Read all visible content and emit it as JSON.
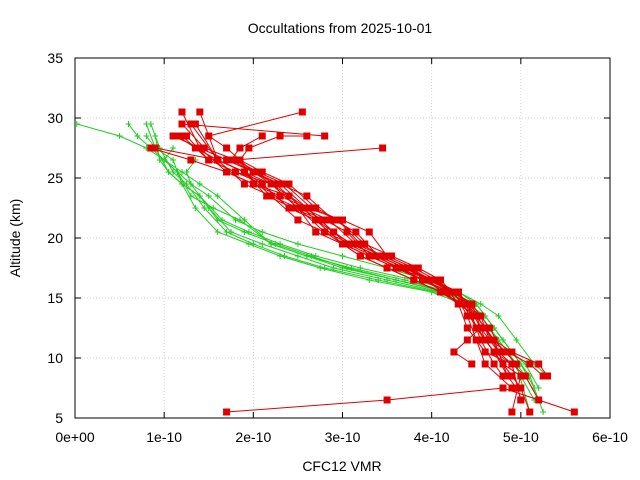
{
  "chart_data": {
    "type": "line",
    "title": "Occultations from 2025-10-01",
    "xlabel": "CFC12 VMR",
    "ylabel": "Altitude (km)",
    "xlim": [
      0,
      6e-10
    ],
    "ylim": [
      5,
      35
    ],
    "xticks": [
      {
        "value": 0,
        "label": "0e+00"
      },
      {
        "value": 1e-10,
        "label": "1e-10"
      },
      {
        "value": 2e-10,
        "label": "2e-10"
      },
      {
        "value": 3e-10,
        "label": "3e-10"
      },
      {
        "value": 4e-10,
        "label": "4e-10"
      },
      {
        "value": 5e-10,
        "label": "5e-10"
      },
      {
        "value": 6e-10,
        "label": "6e-10"
      }
    ],
    "yticks": [
      {
        "value": 5,
        "label": "5"
      },
      {
        "value": 10,
        "label": "10"
      },
      {
        "value": 15,
        "label": "15"
      },
      {
        "value": 20,
        "label": "20"
      },
      {
        "value": 25,
        "label": "25"
      },
      {
        "value": 30,
        "label": "30"
      },
      {
        "value": 35,
        "label": "35"
      }
    ],
    "colors": {
      "red": "#e00000",
      "green": "#22cc22"
    },
    "series": [
      {
        "name": "red-1",
        "color": "red",
        "marker": "square",
        "x": [
          5.6e-10,
          4.8e-10,
          3.5e-10,
          1.7e-10
        ],
        "y": [
          5.5,
          7.5,
          6.5,
          5.5
        ]
      },
      {
        "name": "red-2",
        "color": "red",
        "marker": "square",
        "x": [
          4.9e-10,
          5e-10,
          4.8e-10,
          4.7e-10,
          4.5e-10,
          4.3e-10,
          4.2e-10,
          4e-10,
          3.6e-10,
          3.4e-10,
          3.1e-10,
          2.9e-10,
          2.7e-10,
          2.4e-10,
          2.1e-10,
          1.9e-10,
          1.6e-10,
          1.4e-10
        ],
        "y": [
          5.5,
          8.5,
          9.5,
          11.5,
          13.5,
          14.5,
          15.5,
          16.5,
          17.5,
          18.5,
          19.5,
          20.5,
          21.5,
          22.5,
          24.5,
          25.5,
          26.5,
          30.5
        ]
      },
      {
        "name": "red-3",
        "color": "red",
        "marker": "square",
        "x": [
          5e-10,
          4.9e-10,
          4.6e-10,
          4.4e-10,
          4.3e-10,
          4.2e-10,
          3.9e-10,
          3.6e-10,
          3.3e-10,
          3e-10,
          2.8e-10,
          2.5e-10,
          2.2e-10,
          1.9e-10,
          1.6e-10,
          1.3e-10
        ],
        "y": [
          6.5,
          9.5,
          10.5,
          12.5,
          14.5,
          15.5,
          16.5,
          17.5,
          18.5,
          19.5,
          20.5,
          21.5,
          23.5,
          24.5,
          26.5,
          29.5
        ]
      },
      {
        "name": "red-4",
        "color": "red",
        "marker": "square",
        "x": [
          5.3e-10,
          5.2e-10,
          4.9e-10,
          4.7e-10,
          4.6e-10,
          4.5e-10,
          4.3e-10,
          4.1e-10,
          3.8e-10,
          3.5e-10,
          3.2e-10,
          3e-10,
          2.7e-10,
          2.4e-10,
          2e-10,
          1.7e-10,
          1.4e-10,
          1.2e-10
        ],
        "y": [
          8.5,
          9.5,
          10.5,
          11.5,
          12.5,
          13.5,
          14.5,
          15.5,
          16.5,
          17.5,
          18.5,
          19.5,
          21.5,
          23.5,
          24.5,
          25.5,
          27.5,
          30.5
        ]
      },
      {
        "name": "red-5",
        "color": "red",
        "marker": "square",
        "x": [
          5.1e-10,
          5e-10,
          4.8e-10,
          4.6e-10,
          4.5e-10,
          4.3e-10,
          4e-10,
          3.7e-10,
          3.4e-10,
          3.1e-10,
          2.9e-10,
          2.6e-10,
          2.3e-10,
          2e-10,
          1.7e-10,
          1.1e-10
        ],
        "y": [
          5.5,
          7.5,
          9.5,
          11.5,
          13.5,
          15.5,
          16.5,
          17.5,
          18.5,
          19.5,
          20.5,
          22.5,
          24.5,
          25.5,
          26.5,
          28.5
        ]
      },
      {
        "name": "red-6",
        "color": "red",
        "marker": "square",
        "x": [
          4.95e-10,
          4.85e-10,
          4.7e-10,
          4.5e-10,
          4.4e-10,
          4.2e-10,
          3.9e-10,
          3.6e-10,
          3.3e-10,
          3e-10,
          2.7e-10,
          2.5e-10,
          2.2e-10,
          1.8e-10,
          1.5e-10,
          1.2e-10
        ],
        "y": [
          7.5,
          8.5,
          10.5,
          12.5,
          14.5,
          15.5,
          16.5,
          17.5,
          18.5,
          19.5,
          20.5,
          22.5,
          24.5,
          25.5,
          26.5,
          28.5
        ]
      },
      {
        "name": "red-7",
        "color": "red",
        "marker": "square",
        "x": [
          4.8e-10,
          4.7e-10,
          4.55e-10,
          4.45e-10,
          4.3e-10,
          4e-10,
          3.7e-10,
          3.4e-10,
          3.1e-10,
          2.9e-10,
          2.6e-10,
          2.3e-10,
          2e-10,
          1.7e-10,
          1.3e-10,
          8.5e-11
        ],
        "y": [
          8.5,
          9.5,
          11.5,
          13.5,
          15.5,
          16.5,
          17.5,
          18.5,
          19.5,
          20.5,
          22.5,
          23.5,
          24.5,
          25.5,
          26.5,
          27.5
        ]
      },
      {
        "name": "red-8",
        "color": "red",
        "marker": "square",
        "x": [
          5.2e-10,
          5.05e-10,
          4.9e-10,
          4.7e-10,
          4.5e-10,
          4.35e-10,
          4.1e-10,
          3.8e-10,
          3.5e-10,
          3.2e-10,
          3e-10,
          2.7e-10,
          2.4e-10,
          2.1e-10,
          1.8e-10,
          1.5e-10,
          1.25e-10
        ],
        "y": [
          6.5,
          8.5,
          9.5,
          10.5,
          12.5,
          14.5,
          15.5,
          16.5,
          17.5,
          18.5,
          19.5,
          21.5,
          22.5,
          24.5,
          25.5,
          26.5,
          28.5
        ]
      },
      {
        "name": "red-9",
        "color": "red",
        "marker": "square",
        "x": [
          5.25e-10,
          5.1e-10,
          4.85e-10,
          4.65e-10,
          4.55e-10,
          4.4e-10,
          4.25e-10,
          3.95e-10,
          3.7e-10,
          3.4e-10,
          3.1e-10,
          2.8e-10,
          2.5e-10,
          2.2e-10,
          1.9e-10,
          1.6e-10,
          1.35e-10
        ],
        "y": [
          8.5,
          9.5,
          10.5,
          11.5,
          13.5,
          14.5,
          15.5,
          16.5,
          17.5,
          18.5,
          19.5,
          20.5,
          22.5,
          23.5,
          25.5,
          26.5,
          29.5
        ]
      },
      {
        "name": "red-10",
        "color": "red",
        "marker": "square",
        "x": [
          4.9e-10,
          4.6e-10,
          4.5e-10,
          4.4e-10,
          4.25e-10,
          4.05e-10,
          3.8e-10,
          3.5e-10,
          3.3e-10,
          3e-10,
          2.6e-10,
          2.2e-10,
          1.9e-10,
          1.6e-10,
          9e-11
        ],
        "y": [
          7.5,
          9.5,
          11.5,
          13.5,
          15.5,
          16.5,
          17.5,
          18.5,
          20.5,
          21.5,
          22.5,
          24.5,
          25.5,
          26.5,
          27.5
        ]
      },
      {
        "name": "red-11",
        "color": "red",
        "marker": "square",
        "x": [
          4.85e-10,
          4.75e-10,
          4.6e-10,
          4.4e-10,
          4.3e-10,
          4e-10,
          3.7e-10,
          3.4e-10,
          3.15e-10,
          2.9e-10,
          2.6e-10,
          2.3e-10,
          2e-10,
          1.8e-10,
          3.45e-10
        ],
        "y": [
          8.5,
          10.5,
          12.5,
          14.5,
          15.5,
          16.5,
          17.5,
          18.5,
          20.5,
          21.5,
          23.5,
          24.5,
          25.5,
          26.5,
          27.5
        ]
      },
      {
        "name": "red-12",
        "color": "red",
        "marker": "square",
        "x": [
          5e-10,
          4.9e-10,
          4.75e-10,
          4.55e-10,
          4.4e-10,
          4.2e-10,
          3.9e-10,
          3.6e-10,
          3.3e-10,
          3.05e-10,
          2.8e-10,
          2.5e-10,
          2.2e-10,
          2e-10,
          1.7e-10,
          1.5e-10,
          2.55e-10
        ],
        "y": [
          6.5,
          9.5,
          10.5,
          12.5,
          14.5,
          15.5,
          16.5,
          17.5,
          18.5,
          20.5,
          21.5,
          22.5,
          24.5,
          25.5,
          27.5,
          28.5,
          30.5
        ]
      },
      {
        "name": "red-13",
        "color": "red",
        "marker": "square",
        "x": [
          4.9e-10,
          4.8e-10,
          4.6e-10,
          4.35e-10,
          4.1e-10,
          3.85e-10,
          3.55e-10,
          3.25e-10,
          2.95e-10,
          2.7e-10,
          2.4e-10,
          2.1e-10,
          1.85e-10,
          1.95e-10,
          2.3e-10,
          2.6e-10
        ],
        "y": [
          8.5,
          9.5,
          11.5,
          14.5,
          16.5,
          17.5,
          18.5,
          19.5,
          21.5,
          22.5,
          24.5,
          25.5,
          26.5,
          27.5,
          28.5,
          28.5
        ]
      },
      {
        "name": "red-14",
        "color": "red",
        "marker": "square",
        "x": [
          4.95e-10,
          4.7e-10,
          4.5e-10,
          4.3e-10,
          4.15e-10,
          3.9e-10,
          3.65e-10,
          3.35e-10,
          3.05e-10,
          2.75e-10,
          2.45e-10,
          2.15e-10,
          1.9e-10,
          1.6e-10,
          1.35e-10,
          1.15e-10
        ],
        "y": [
          9.5,
          11.5,
          13.5,
          14.5,
          15.5,
          16.5,
          17.5,
          18.5,
          19.5,
          21.5,
          22.5,
          23.5,
          25.5,
          26.5,
          27.5,
          28.5
        ]
      },
      {
        "name": "red-15",
        "color": "red",
        "marker": "square",
        "x": [
          4.45e-10,
          4.25e-10,
          4.4e-10,
          4.55e-10,
          4.45e-10,
          4.25e-10,
          4e-10,
          3.75e-10,
          3.45e-10,
          3.15e-10,
          2.85e-10,
          2.55e-10,
          2.25e-10,
          2e-10,
          1.75e-10,
          1.85e-10,
          2.1e-10
        ],
        "y": [
          9.5,
          10.5,
          11.5,
          12.5,
          14.5,
          15.5,
          16.5,
          17.5,
          18.5,
          19.5,
          21.5,
          22.5,
          24.5,
          25.5,
          26.5,
          27.5,
          28.5
        ]
      },
      {
        "name": "red-16",
        "color": "red",
        "marker": "square",
        "x": [
          4.8e-10,
          4.65e-10,
          4.45e-10,
          4.25e-10,
          4e-10,
          3.75e-10,
          3.45e-10,
          3.2e-10,
          2.95e-10,
          2.65e-10,
          2.35e-10,
          2.05e-10,
          1.8e-10,
          1.45e-10,
          1.2e-10,
          2.8e-10
        ],
        "y": [
          10.5,
          12.5,
          14.5,
          15.5,
          16.5,
          17.5,
          18.5,
          19.5,
          21.5,
          22.5,
          24.5,
          25.5,
          26.5,
          27.5,
          29.5,
          28.5
        ]
      },
      {
        "name": "green-1",
        "color": "green",
        "marker": "plus",
        "x": [
          5.25e-10,
          5.1e-10,
          4.9e-10,
          4.7e-10,
          4.5e-10,
          4.2e-10,
          3.6e-10,
          3e-10,
          2.6e-10,
          2.2e-10,
          1.9e-10,
          1.6e-10,
          1.4e-10,
          1.2e-10,
          1e-10,
          8e-11,
          5e-11,
          2e-12
        ],
        "y": [
          5.5,
          8.5,
          10.5,
          12.5,
          14.5,
          15.5,
          16.5,
          17.5,
          18.5,
          19.5,
          21.5,
          23.5,
          24.5,
          25.5,
          26.5,
          27.5,
          28.5,
          29.5
        ]
      },
      {
        "name": "green-2",
        "color": "green",
        "marker": "plus",
        "x": [
          5.2e-10,
          5.05e-10,
          4.85e-10,
          4.65e-10,
          4.45e-10,
          4.1e-10,
          3.5e-10,
          2.9e-10,
          2.5e-10,
          2.1e-10,
          1.75e-10,
          1.5e-10,
          1.3e-10,
          1.15e-10,
          1e-10,
          8.5e-11,
          7e-11,
          6e-11
        ],
        "y": [
          6.5,
          8.5,
          10.5,
          12.5,
          14.5,
          15.5,
          16.5,
          17.5,
          18.5,
          19.5,
          20.5,
          22.5,
          24.5,
          25.5,
          26.5,
          27.5,
          28.5,
          29.5
        ]
      },
      {
        "name": "green-3",
        "color": "green",
        "marker": "plus",
        "x": [
          5.15e-10,
          5e-10,
          4.8e-10,
          4.6e-10,
          4.4e-10,
          4.05e-10,
          3.4e-10,
          2.8e-10,
          2.35e-10,
          2e-10,
          1.7e-10,
          1.45e-10,
          1.25e-10,
          1.1e-10,
          9.5e-11,
          8.5e-11
        ],
        "y": [
          7.5,
          9.5,
          11.5,
          13.5,
          14.5,
          15.5,
          16.5,
          17.5,
          18.5,
          19.5,
          20.5,
          22.5,
          24.5,
          25.5,
          27.5,
          29.5
        ]
      },
      {
        "name": "green-4",
        "color": "green",
        "marker": "plus",
        "x": [
          5.3e-10,
          5.15e-10,
          4.95e-10,
          4.75e-10,
          4.55e-10,
          4.3e-10,
          3.8e-10,
          3.2e-10,
          2.7e-10,
          2.3e-10,
          1.95e-10,
          1.65e-10,
          1.4e-10,
          1.2e-10,
          1.05e-10,
          9e-11,
          8e-11
        ],
        "y": [
          8.5,
          9.5,
          11.5,
          13.5,
          14.5,
          15.5,
          16.5,
          17.5,
          18.5,
          19.5,
          20.5,
          21.5,
          23.5,
          24.5,
          25.5,
          27.5,
          28.5
        ]
      },
      {
        "name": "green-5",
        "color": "green",
        "marker": "plus",
        "x": [
          5.1e-10,
          4.95e-10,
          4.75e-10,
          4.55e-10,
          4.35e-10,
          4e-10,
          3.3e-10,
          2.75e-10,
          2.3e-10,
          1.95e-10,
          1.6e-10,
          1.35e-10,
          1.2e-10,
          1.05e-10,
          9.5e-11,
          9e-11
        ],
        "y": [
          5.5,
          9.5,
          11.5,
          13.5,
          14.5,
          15.5,
          16.5,
          17.5,
          18.5,
          19.5,
          20.5,
          22.5,
          24.5,
          25.5,
          26.5,
          28.5
        ]
      },
      {
        "name": "green-6",
        "color": "green",
        "marker": "plus",
        "x": [
          5.2e-10,
          5.05e-10,
          4.9e-10,
          4.7e-10,
          4.5e-10,
          4.2e-10,
          3.7e-10,
          3.1e-10,
          2.6e-10,
          2.2e-10,
          1.85e-10,
          1.55e-10,
          1.3e-10,
          1.15e-10,
          1e-10,
          1.1e-10
        ],
        "y": [
          7.5,
          9.5,
          10.5,
          12.5,
          14.5,
          15.5,
          16.5,
          17.5,
          18.5,
          19.5,
          21.5,
          22.5,
          23.5,
          25.5,
          26.5,
          27.5
        ]
      },
      {
        "name": "green-7",
        "color": "green",
        "marker": "plus",
        "x": [
          5e-10,
          4.9e-10,
          4.7e-10,
          4.5e-10,
          4.3e-10,
          3.95e-10,
          3.5e-10,
          3e-10,
          2.5e-10,
          2.1e-10,
          1.8e-10,
          1.5e-10,
          1.3e-10,
          1.25e-10,
          1.35e-10
        ],
        "y": [
          9.5,
          10.5,
          12.5,
          14.5,
          15.5,
          16.5,
          17.5,
          18.5,
          19.5,
          20.5,
          21.5,
          23.5,
          24.5,
          25.5,
          26.5
        ]
      },
      {
        "name": "green-8",
        "color": "green",
        "marker": "plus",
        "x": [
          5.15e-10,
          5e-10,
          4.85e-10,
          4.65e-10,
          4.45e-10,
          4.15e-10,
          3.6e-10,
          3.05e-10,
          2.65e-10,
          2.25e-10,
          1.9e-10,
          1.6e-10,
          1.4e-10,
          1.2e-10,
          1.1e-10,
          9e-11,
          8e-11
        ],
        "y": [
          6.5,
          8.5,
          10.5,
          12.5,
          14.5,
          15.5,
          16.5,
          17.5,
          18.5,
          19.5,
          20.5,
          21.5,
          23.5,
          24.5,
          26.5,
          27.5,
          29.5
        ]
      }
    ]
  }
}
